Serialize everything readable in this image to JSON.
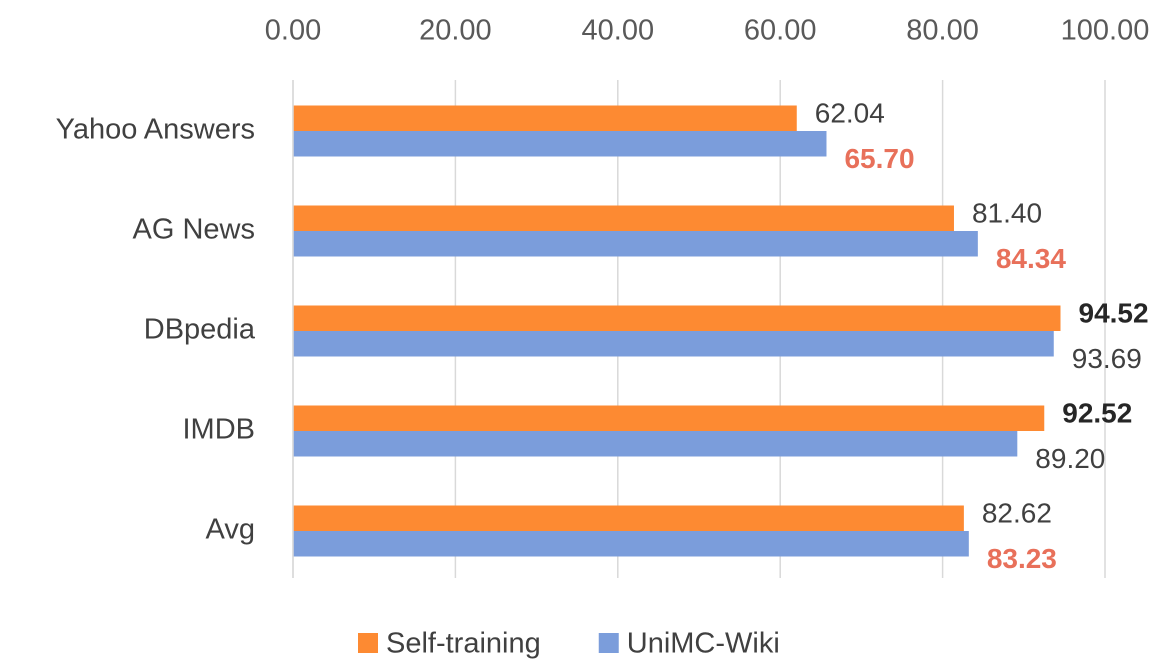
{
  "chart_data": {
    "type": "bar",
    "orientation": "horizontal",
    "categories": [
      "Yahoo Answers",
      "AG News",
      "DBpedia",
      "IMDB",
      "Avg"
    ],
    "series": [
      {
        "name": "Self-training",
        "color": "#fd8a32",
        "values": [
          62.04,
          81.4,
          94.52,
          92.52,
          82.62
        ],
        "value_labels": [
          "62.04",
          "81.40",
          "94.52",
          "92.52",
          "82.62"
        ],
        "value_label_colors": [
          "#404040",
          "#404040",
          "#262626",
          "#262626",
          "#404040"
        ],
        "value_label_weights": [
          "normal",
          "normal",
          "bold",
          "bold",
          "normal"
        ]
      },
      {
        "name": "UniMC-Wiki",
        "color": "#7b9ddb",
        "values": [
          65.7,
          84.34,
          93.69,
          89.2,
          83.23
        ],
        "value_labels": [
          "65.70",
          "84.34",
          "93.69",
          "89.20",
          "83.23"
        ],
        "value_label_colors": [
          "#e8705a",
          "#e8705a",
          "#404040",
          "#404040",
          "#e8705a"
        ],
        "value_label_weights": [
          "bold",
          "bold",
          "normal",
          "normal",
          "bold"
        ]
      }
    ],
    "xlim": [
      0,
      100
    ],
    "xticks": [
      {
        "value": 0,
        "label": "0.00"
      },
      {
        "value": 20,
        "label": "20.00"
      },
      {
        "value": 40,
        "label": "40.00"
      },
      {
        "value": 60,
        "label": "60.00"
      },
      {
        "value": 80,
        "label": "80.00"
      },
      {
        "value": 100,
        "label": "100.00"
      }
    ],
    "grid": true,
    "legend": "bottom"
  }
}
